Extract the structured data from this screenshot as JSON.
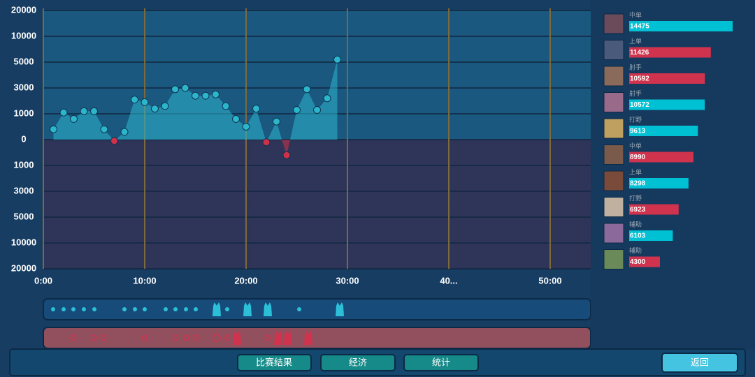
{
  "chart_data": {
    "type": "area",
    "x": [
      1,
      2,
      3,
      4,
      5,
      6,
      7,
      8,
      9,
      10,
      11,
      12,
      13,
      14,
      15,
      16,
      17,
      18,
      19,
      20,
      21,
      22,
      23,
      24,
      25,
      26,
      27,
      28,
      29
    ],
    "values": [
      400,
      1100,
      800,
      1200,
      1200,
      400,
      -50,
      300,
      2100,
      1900,
      1400,
      1600,
      2900,
      3000,
      2400,
      2400,
      2500,
      1600,
      800,
      500,
      1400,
      -100,
      700,
      -600,
      1300,
      2900,
      1300,
      2200,
      5500
    ],
    "positive_color": "#2bb6cc",
    "negative_color": "#d03048",
    "xlim": [
      0,
      54
    ],
    "xticks": [
      {
        "value": 0,
        "label": "0:00"
      },
      {
        "value": 10,
        "label": "10:00"
      },
      {
        "value": 20,
        "label": "20:00"
      },
      {
        "value": 30,
        "label": "30:00"
      },
      {
        "value": 40,
        "label": "40..."
      },
      {
        "value": 50,
        "label": "50:00"
      }
    ],
    "ylim": [
      -20000,
      20000
    ],
    "yticks": [
      {
        "value": -20000,
        "label": "20000"
      },
      {
        "value": -10000,
        "label": "10000"
      },
      {
        "value": -5000,
        "label": "5000"
      },
      {
        "value": -3000,
        "label": "3000"
      },
      {
        "value": -1000,
        "label": "1000"
      },
      0,
      1000,
      3000,
      5000,
      10000,
      20000
    ],
    "grid": true
  },
  "players": [
    {
      "role": "中单",
      "gold": 14475,
      "color": "#00c0d4"
    },
    {
      "role": "上单",
      "gold": 11426,
      "color": "#d0334e"
    },
    {
      "role": "射手",
      "gold": 10592,
      "color": "#d0334e"
    },
    {
      "role": "射手",
      "gold": 10572,
      "color": "#00c0d4"
    },
    {
      "role": "打野",
      "gold": 9613,
      "color": "#00c0d4"
    },
    {
      "role": "中单",
      "gold": 8990,
      "color": "#d0334e"
    },
    {
      "role": "上单",
      "gold": 8298,
      "color": "#00c0d4"
    },
    {
      "role": "打野",
      "gold": 6923,
      "color": "#d0334e"
    },
    {
      "role": "辅助",
      "gold": 6103,
      "color": "#00c0d4"
    },
    {
      "role": "辅助",
      "gold": 4300,
      "color": "#d0334e"
    }
  ],
  "buttons": {
    "result": "比赛结果",
    "economy": "经济",
    "stats": "统计",
    "back": "返回"
  }
}
